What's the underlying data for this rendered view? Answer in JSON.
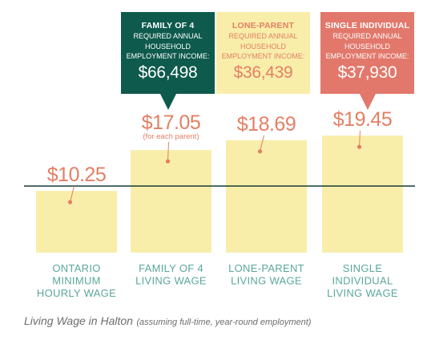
{
  "callouts": [
    {
      "title": "FAMILY OF 4",
      "line1": "REQUIRED ANNUAL",
      "line2": "HOUSEHOLD",
      "line3": "EMPLOYMENT INCOME:",
      "amount": "$66,498"
    },
    {
      "title": "LONE-PARENT",
      "line1": "REQUIRED ANNUAL",
      "line2": "HOUSEHOLD",
      "line3": "EMPLOYMENT INCOME:",
      "amount": "$36,439"
    },
    {
      "title": "SINGLE INDIVIDUAL",
      "line1": "REQUIRED ANNUAL",
      "line2": "HOUSEHOLD",
      "line3": "EMPLOYMENT INCOME:",
      "amount": "$37,930"
    }
  ],
  "caption": {
    "main": "Living Wage in Halton",
    "note": "(assuming full-time, year-round employment)"
  },
  "colors": {
    "bar": "#f8eeaa",
    "value_text": "#e37f63",
    "label_text": "#5aa79b",
    "baseline": "#173a33",
    "family_box": "#0e5a4c",
    "single_box": "#e1786b"
  },
  "chart_data": {
    "type": "bar",
    "categories": [
      [
        "ONTARIO",
        "MINIMUM",
        "HOURLY WAGE"
      ],
      [
        "FAMILY OF 4",
        "LIVING WAGE"
      ],
      [
        "LONE-PARENT",
        "LIVING WAGE"
      ],
      [
        "SINGLE",
        "INDIVIDUAL",
        "LIVING WAGE"
      ]
    ],
    "values": [
      10.25,
      17.05,
      18.69,
      19.45
    ],
    "value_labels": [
      "$10.25",
      "$17.05",
      "$18.69",
      "$19.45"
    ],
    "value_notes": [
      "",
      "(for each parent)",
      "",
      ""
    ],
    "baseline_value": 12,
    "ylim": [
      0,
      21
    ]
  }
}
